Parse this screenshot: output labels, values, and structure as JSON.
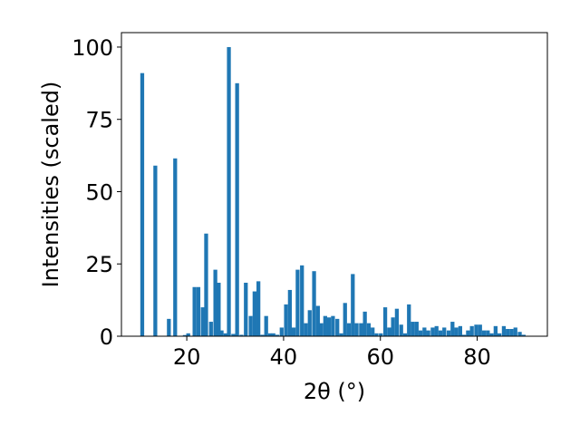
{
  "chart_data": {
    "type": "bar",
    "xlabel": "2θ (°)",
    "ylabel": "Intensities (scaled)",
    "xlim": [
      6.5,
      94.5
    ],
    "ylim": [
      0,
      105
    ],
    "xticks": [
      20,
      40,
      60,
      80
    ],
    "yticks": [
      0,
      25,
      50,
      75,
      100
    ],
    "bar_width": 0.8,
    "bar_color": "#1f77b4",
    "grid": false,
    "x": [
      10.8,
      13.5,
      16.3,
      17.6,
      19.6,
      20.3,
      21.6,
      22.4,
      23.3,
      24.0,
      25.0,
      25.9,
      26.6,
      27.2,
      28.0,
      28.7,
      29.6,
      30.4,
      31.3,
      32.2,
      33.2,
      34.0,
      34.8,
      35.6,
      36.4,
      37.2,
      37.9,
      38.7,
      39.6,
      40.5,
      41.3,
      42.1,
      42.9,
      43.8,
      44.6,
      45.4,
      46.3,
      47.1,
      47.8,
      48.6,
      49.4,
      50.2,
      51.1,
      51.9,
      52.7,
      53.5,
      54.3,
      55.1,
      56.0,
      56.8,
      57.6,
      58.4,
      59.2,
      60.1,
      61.0,
      61.8,
      62.6,
      63.4,
      64.3,
      65.1,
      65.9,
      66.7,
      67.5,
      68.3,
      69.1,
      69.9,
      70.8,
      71.6,
      72.4,
      73.2,
      74.1,
      74.9,
      75.7,
      76.5,
      77.3,
      78.1,
      78.9,
      79.8,
      80.6,
      81.4,
      82.2,
      83.0,
      83.8,
      84.6,
      85.5,
      86.3,
      87.1,
      87.9,
      88.8,
      89.6
    ],
    "values": [
      91,
      59,
      6,
      61.5,
      0.4,
      1,
      17,
      17,
      10,
      35.5,
      5,
      23,
      18.5,
      2,
      1,
      100,
      0.8,
      87.5,
      0.5,
      18.5,
      7,
      15.5,
      19,
      0.5,
      7,
      1,
      1,
      0.5,
      3,
      11,
      16,
      3,
      23,
      24.5,
      4.5,
      9,
      22.5,
      10.5,
      4.5,
      7,
      6.5,
      7,
      6,
      1,
      11.5,
      4.5,
      21.5,
      4.5,
      4.5,
      8.5,
      4.5,
      3,
      1,
      1,
      10,
      3,
      6.5,
      9.5,
      4,
      1,
      11,
      5,
      5,
      2,
      3,
      2,
      3,
      3.5,
      2,
      3,
      2,
      5,
      3,
      3.5,
      0.5,
      2,
      3.5,
      4,
      4,
      2,
      2,
      1,
      3.5,
      1,
      3.5,
      2.5,
      2.5,
      3,
      1.5,
      0.5
    ]
  }
}
